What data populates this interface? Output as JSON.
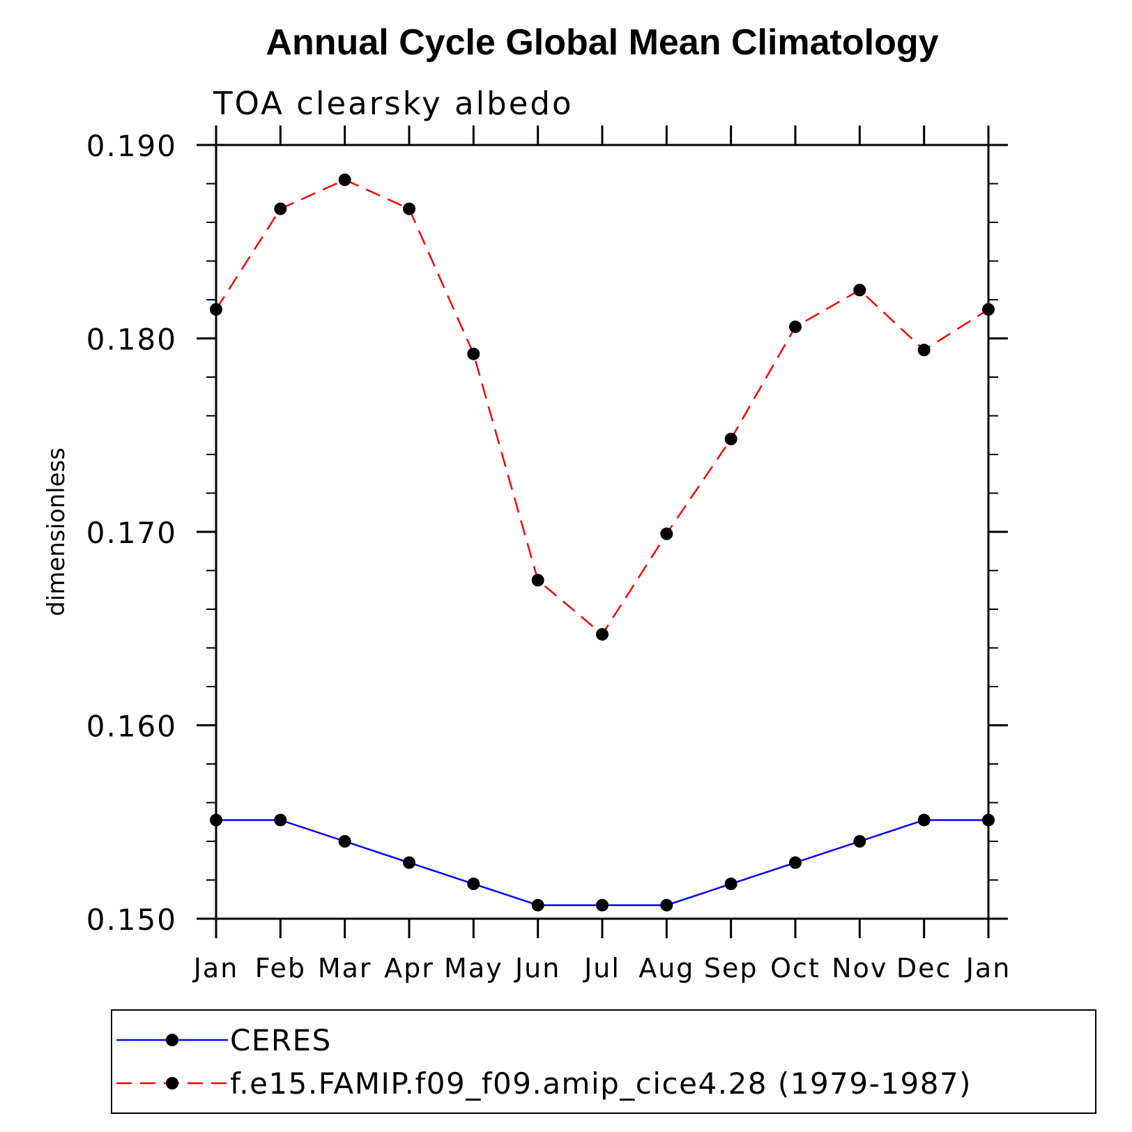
{
  "chart_data": {
    "type": "line",
    "title": "Annual Cycle Global Mean Climatology",
    "subtitle": "TOA clearsky albedo",
    "xlabel": "",
    "ylabel": "dimensionless",
    "categories": [
      "Jan",
      "Feb",
      "Mar",
      "Apr",
      "May",
      "Jun",
      "Jul",
      "Aug",
      "Sep",
      "Oct",
      "Nov",
      "Dec",
      "Jan"
    ],
    "ylim": [
      0.15,
      0.19
    ],
    "yticks": [
      "0.150",
      "0.160",
      "0.170",
      "0.180",
      "0.190"
    ],
    "y_minor_step": 0.002,
    "grid": false,
    "legend_position": "bottom",
    "series": [
      {
        "name": "CERES",
        "color": "#0000ff",
        "line_style": "solid",
        "marker": "filled-circle",
        "values": [
          0.1551,
          0.1551,
          0.154,
          0.1529,
          0.1518,
          0.1507,
          0.1507,
          0.1507,
          0.1518,
          0.1529,
          0.154,
          0.1551,
          0.1551
        ]
      },
      {
        "name": "f.e15.FAMIP.f09_f09.amip_cice4.28 (1979-1987)",
        "color": "#ff0000",
        "line_style": "dashed",
        "marker": "filled-circle",
        "values": [
          0.1815,
          0.1867,
          0.1882,
          0.1867,
          0.1792,
          0.1675,
          0.1647,
          0.1699,
          0.1748,
          0.1806,
          0.1825,
          0.1794,
          0.1815
        ]
      }
    ]
  }
}
